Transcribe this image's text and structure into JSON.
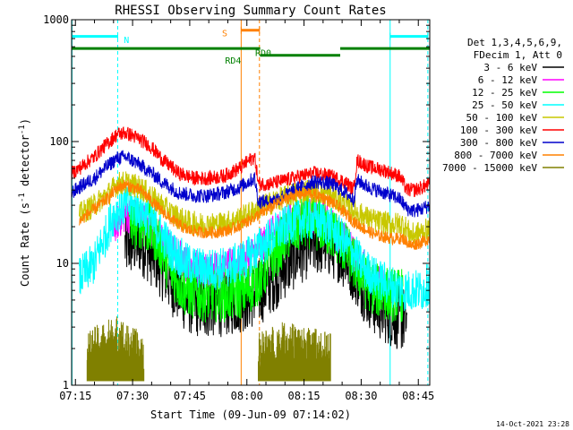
{
  "chart_data": {
    "type": "line",
    "title": "RHESSI Observing Summary Count Rates",
    "xlabel": "Start Time (09-Jun-09 07:14:02)",
    "ylabel": "Count Rate (s",
    "ylabel_sup1": "-1",
    "ylabel_mid": " detector",
    "ylabel_sup2": "-1",
    "ylabel_end": ")",
    "yscale": "log",
    "xlim": [
      0,
      94
    ],
    "ylim": [
      1,
      1000
    ],
    "x_units": "minutes after 07:14:02",
    "x_ticks": [
      {
        "t": 1,
        "label": "07:15"
      },
      {
        "t": 16,
        "label": "07:30"
      },
      {
        "t": 31,
        "label": "07:45"
      },
      {
        "t": 46,
        "label": "08:00"
      },
      {
        "t": 61,
        "label": "08:15"
      },
      {
        "t": 76,
        "label": "08:30"
      },
      {
        "t": 91,
        "label": "08:45"
      }
    ],
    "y_ticks": [
      {
        "v": 1,
        "label": "1"
      },
      {
        "v": 10,
        "label": "10"
      },
      {
        "v": 100,
        "label": "100"
      },
      {
        "v": 1000,
        "label": "1000"
      }
    ],
    "legend": {
      "position": "right",
      "header": [
        "Det 1,3,4,5,6,9,",
        "FDecim 1, Att 0"
      ]
    },
    "series": [
      {
        "name": "3 - 6 keV",
        "color": "#000000",
        "noise": 0.55,
        "x": [
          0,
          5,
          10,
          14,
          18,
          22,
          26,
          30,
          34,
          38,
          42,
          46,
          50,
          54,
          58,
          62,
          66,
          70,
          74,
          77,
          80,
          84,
          86,
          87,
          88,
          90,
          92,
          94
        ],
        "values": [
          null,
          null,
          null,
          14,
          15,
          11,
          7,
          5,
          4.5,
          4.6,
          4.8,
          5.2,
          6,
          8,
          11,
          14,
          15,
          13,
          9,
          6,
          4.5,
          3.8,
          3.6,
          3.5,
          3.4,
          null,
          null,
          null
        ]
      },
      {
        "name": "6 - 12 keV",
        "color": "#ff00ff",
        "noise": 0.3,
        "x": [
          0,
          2,
          6,
          9,
          11,
          14,
          18,
          22,
          26,
          30,
          34,
          38,
          42,
          46,
          50,
          54,
          58,
          62,
          66,
          70,
          74,
          77,
          80,
          84,
          87,
          90,
          92,
          94
        ],
        "values": [
          null,
          null,
          null,
          null,
          20,
          25,
          24,
          18,
          13,
          10,
          9,
          9,
          9.5,
          11,
          14,
          19,
          23,
          25,
          23,
          18,
          12,
          9,
          7,
          6,
          null,
          null,
          null,
          null
        ]
      },
      {
        "name": "12 - 25 keV",
        "color": "#00ff00",
        "noise": 0.45,
        "x": [
          0,
          5,
          10,
          13,
          15,
          18,
          22,
          25,
          28,
          30,
          34,
          38,
          42,
          46,
          50,
          54,
          58,
          62,
          66,
          70,
          74,
          77,
          80,
          84,
          87,
          90,
          92,
          94
        ],
        "values": [
          null,
          null,
          null,
          null,
          21,
          22,
          17,
          10,
          7,
          6,
          5.5,
          5.5,
          5.5,
          6,
          8,
          13,
          19,
          22,
          20,
          16,
          10,
          7,
          6,
          5.5,
          5.5,
          null,
          null,
          null
        ]
      },
      {
        "name": "25 - 50 keV",
        "color": "#00ffff",
        "noise": 0.35,
        "x": [
          0,
          2,
          6,
          9,
          11,
          14,
          18,
          22,
          26,
          30,
          34,
          38,
          42,
          46,
          50,
          54,
          58,
          62,
          66,
          70,
          74,
          77,
          80,
          84,
          87,
          89,
          92,
          94
        ],
        "values": [
          null,
          7.5,
          10,
          17,
          25,
          30,
          28,
          20,
          13,
          10,
          9,
          9,
          9.5,
          11,
          14,
          18,
          22,
          23,
          22,
          17,
          12,
          9,
          7.5,
          6.5,
          6,
          6,
          6,
          7
        ]
      },
      {
        "name": "50 - 100 keV",
        "color": "#c8c800",
        "noise": 0.2,
        "x": [
          0,
          2,
          6,
          10,
          12,
          14,
          18,
          22,
          26,
          30,
          34,
          38,
          42,
          46,
          50,
          54,
          58,
          62,
          66,
          70,
          74,
          77,
          80,
          84,
          87,
          89,
          92,
          94
        ],
        "values": [
          null,
          25,
          30,
          38,
          45,
          46,
          42,
          33,
          26,
          22,
          21,
          21,
          22,
          25,
          29,
          33,
          37,
          40,
          38,
          33,
          27,
          24,
          22,
          21,
          21,
          17,
          18,
          19
        ]
      },
      {
        "name": "100 - 300 keV",
        "color": "#ff0000",
        "noise": 0.12,
        "x": [
          0,
          2,
          6,
          10,
          12,
          14,
          16,
          20,
          24,
          28,
          32,
          36,
          40,
          44,
          48,
          49,
          52,
          56,
          60,
          64,
          68,
          72,
          74,
          75,
          78,
          82,
          86,
          88,
          90,
          92,
          94
        ],
        "values": [
          55,
          60,
          75,
          100,
          115,
          118,
          112,
          95,
          70,
          55,
          50,
          50,
          52,
          60,
          75,
          45,
          45,
          48,
          52,
          55,
          52,
          46,
          40,
          70,
          62,
          58,
          52,
          40,
          40,
          42,
          45
        ]
      },
      {
        "name": "300 - 800 keV",
        "color": "#0000cc",
        "noise": 0.12,
        "x": [
          0,
          2,
          6,
          10,
          12,
          14,
          16,
          20,
          24,
          28,
          32,
          36,
          40,
          44,
          48,
          49,
          52,
          56,
          60,
          64,
          68,
          72,
          74,
          75,
          78,
          82,
          86,
          88,
          90,
          92,
          94
        ],
        "values": [
          38,
          42,
          50,
          65,
          73,
          75,
          70,
          58,
          46,
          38,
          36,
          36,
          38,
          42,
          50,
          32,
          32,
          36,
          42,
          47,
          45,
          38,
          33,
          48,
          42,
          38,
          34,
          28,
          27,
          28,
          30
        ]
      },
      {
        "name": "800 - 7000 keV",
        "color": "#ff8000",
        "noise": 0.1,
        "x": [
          0,
          2,
          6,
          10,
          12,
          14,
          18,
          22,
          26,
          30,
          34,
          38,
          42,
          46,
          50,
          54,
          58,
          62,
          66,
          70,
          74,
          77,
          80,
          84,
          87,
          89,
          92,
          94
        ],
        "values": [
          null,
          22,
          28,
          35,
          42,
          44,
          40,
          30,
          23,
          19,
          18,
          18,
          19,
          22,
          26,
          31,
          36,
          38,
          35,
          29,
          22,
          19,
          17,
          16,
          16,
          14,
          15,
          16
        ]
      },
      {
        "name": "7000 - 15000 keV",
        "color": "#808000",
        "noise": 0.3,
        "spikes": true,
        "x": [
          0,
          3,
          4,
          8,
          13,
          14,
          16,
          19,
          20,
          48,
          49,
          52,
          56,
          62,
          66,
          68,
          69,
          94
        ],
        "values": [
          null,
          null,
          1.6,
          2.0,
          2.3,
          1.9,
          1.8,
          1.6,
          null,
          null,
          1.6,
          1.8,
          2.0,
          1.8,
          1.7,
          1.6,
          null,
          null
        ]
      }
    ],
    "annotations": {
      "vertical_lines": [
        {
          "t": 0.1,
          "color": "#00ffff",
          "style": "solid"
        },
        {
          "t": 12.1,
          "color": "#00ffff",
          "style": "dashed"
        },
        {
          "t": 44.5,
          "color": "#ff8000",
          "style": "solid"
        },
        {
          "t": 49.3,
          "color": "#ff8000",
          "style": "dashed"
        },
        {
          "t": 83.6,
          "color": "#00ffff",
          "style": "solid"
        },
        {
          "t": 93.5,
          "color": "#00ffff",
          "style": "dashed"
        }
      ],
      "bars": [
        {
          "t0": 0.1,
          "t1": 12.1,
          "value": 730,
          "color": "#00ffff",
          "end_ticks": true
        },
        {
          "t0": 83.6,
          "t1": 93.5,
          "value": 730,
          "color": "#00ffff",
          "end_ticks": true
        },
        {
          "t0": 44.5,
          "t1": 49.3,
          "value": 820,
          "color": "#ff8000",
          "end_ticks": true
        },
        {
          "t0": 0,
          "t1": 49.5,
          "value": 580,
          "color": "#008000",
          "end_ticks": false
        },
        {
          "t0": 49.5,
          "t1": 70.5,
          "value": 510,
          "color": "#008000",
          "end_ticks": false
        },
        {
          "t0": 70.5,
          "t1": 94,
          "value": 580,
          "color": "#008000",
          "end_ticks": false
        }
      ],
      "labels": [
        {
          "text": "N",
          "t": 14.4,
          "value": 690,
          "color": "#00ffff"
        },
        {
          "text": "S",
          "t": 40.2,
          "value": 780,
          "color": "#ff8000"
        },
        {
          "text": "RD0",
          "t": 50.3,
          "value": 540,
          "color": "#008000"
        },
        {
          "text": "RD4",
          "t": 42.4,
          "value": 465,
          "color": "#008000"
        }
      ]
    }
  },
  "footer_timestamp": "14-Oct-2021 23:28"
}
